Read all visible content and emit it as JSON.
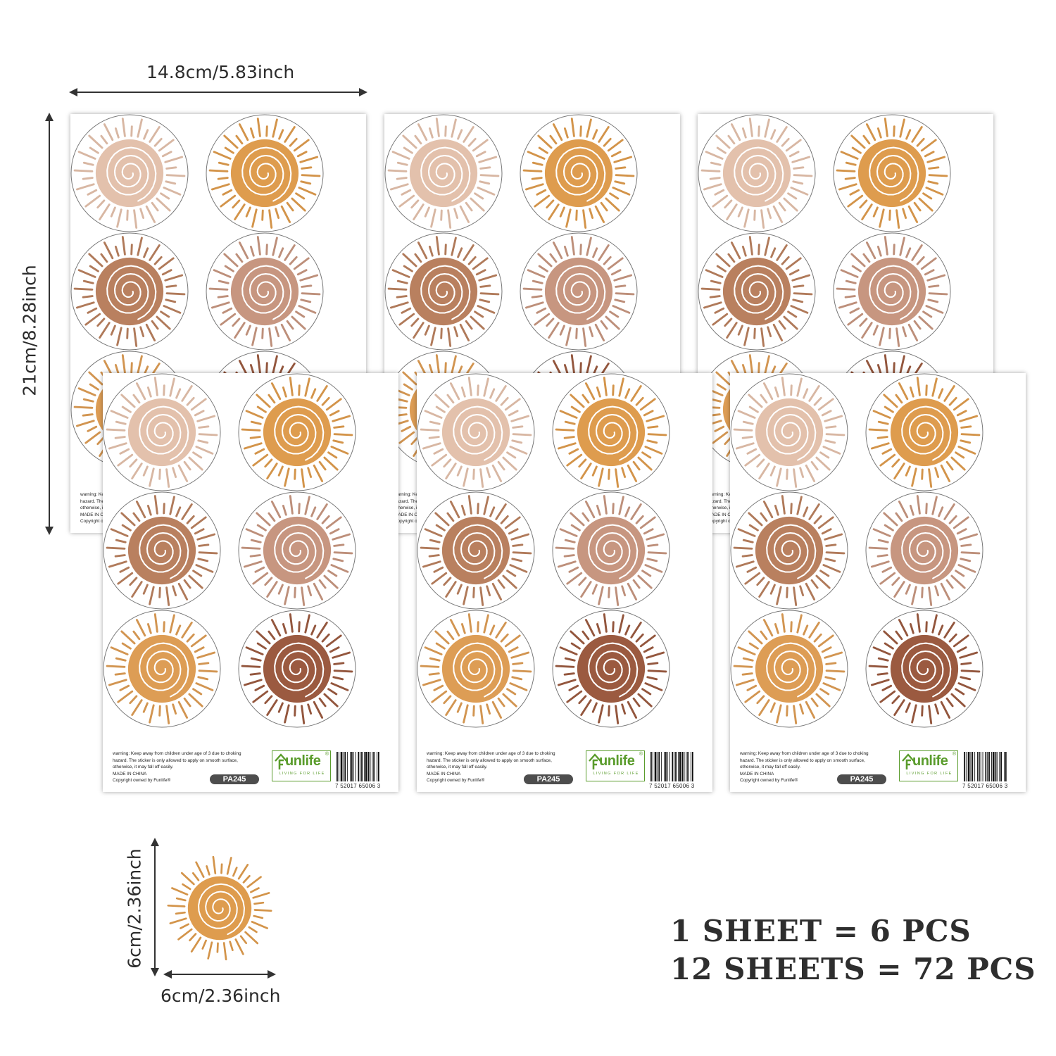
{
  "dimensions": {
    "sheet_width": "14.8cm/5.83inch",
    "sheet_height": "21cm/8.28inch",
    "sticker_height": "6cm/2.36inch",
    "sticker_width": "6cm/2.36inch"
  },
  "sheet": {
    "warning_lines": [
      "warning: Keep away from children under age of 3 due to choking",
      "hazard. The sticker is only allowed to apply on smooth surface,",
      "otherwise, it may fall off easily.",
      "MADE IN CHINA",
      "Copyright owned by Funlife®"
    ],
    "product_code": "PA245",
    "brand": {
      "name": "unlife",
      "tagline": "LIVING FOR LIFE",
      "registered": "®"
    },
    "barcode_number": "7  52017  65006  3",
    "sticker_colors": [
      "#e3c1ac",
      "#de9c4e",
      "#b9805f",
      "#c79680",
      "#dd9d55",
      "#9b5a40"
    ],
    "icon": "sun-spiral-icon"
  },
  "summary": {
    "line1": "1 SHEET = 6 PCS",
    "line2": "12 SHEETS = 72 PCS"
  }
}
